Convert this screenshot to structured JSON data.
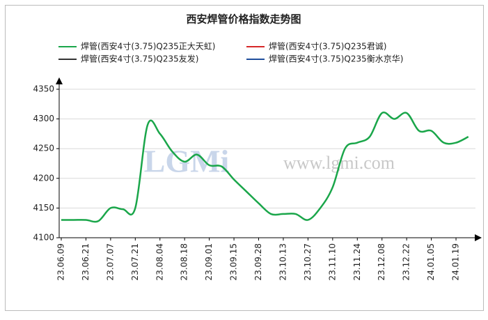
{
  "chart_data": {
    "type": "line",
    "title": "西安焊管价格指数走势图",
    "watermark": [
      "LGMi",
      "www.lgmi.com"
    ],
    "categories": [
      "23.06.09",
      null,
      "23.06.21",
      null,
      "23.07.07",
      null,
      "23.07.21",
      null,
      "23.08.04",
      null,
      "23.08.18",
      null,
      "23.09.01",
      null,
      "23.09.15",
      null,
      "23.09.28",
      null,
      "23.10.13",
      null,
      "23.10.27",
      null,
      "23.11.10",
      null,
      "23.11.24",
      null,
      "23.12.08",
      null,
      "23.12.22",
      null,
      "24.01.05",
      null,
      "24.01.19",
      null
    ],
    "series": [
      {
        "name": "焊管(西安4寸(3.75)Q235正大天虹)",
        "color": "#1aa64a",
        "values": [
          4130,
          4130,
          4130,
          4128,
          4150,
          4148,
          4150,
          4290,
          4275,
          4245,
          4228,
          4240,
          4222,
          4220,
          4198,
          4178,
          4158,
          4140,
          4140,
          4140,
          4130,
          4150,
          4185,
          4250,
          4260,
          4270,
          4310,
          4300,
          4310,
          4280,
          4280,
          4260,
          4260,
          4270
        ]
      },
      {
        "name": "焊管(西安4寸(3.75)Q235君诚)",
        "color": "#d62728",
        "values": [
          null,
          null,
          null,
          null,
          null,
          null,
          null,
          null,
          null,
          null,
          null,
          null,
          null,
          null,
          null,
          null,
          null,
          null,
          null,
          null,
          null,
          null,
          null,
          null,
          null,
          null,
          null,
          null,
          null,
          null,
          null,
          null,
          null,
          null
        ]
      },
      {
        "name": "焊管(西安4寸(3.75)Q235友发)",
        "color": "#333333",
        "values": [
          null,
          null,
          null,
          null,
          null,
          null,
          null,
          null,
          null,
          null,
          null,
          null,
          null,
          null,
          null,
          null,
          null,
          null,
          null,
          null,
          null,
          null,
          null,
          null,
          null,
          null,
          null,
          null,
          null,
          null,
          null,
          null,
          null,
          null
        ]
      },
      {
        "name": "焊管(西安4寸(3.75)Q235衡水京华)",
        "color": "#1f4e9c",
        "values": [
          null,
          null,
          null,
          null,
          null,
          null,
          null,
          null,
          null,
          null,
          null,
          null,
          null,
          null,
          null,
          null,
          null,
          null,
          null,
          null,
          null,
          null,
          null,
          null,
          null,
          null,
          null,
          null,
          null,
          null,
          null,
          null,
          null,
          null
        ]
      }
    ],
    "ylim": [
      4100,
      4350
    ],
    "yticks": [
      4100,
      4150,
      4200,
      4250,
      4300,
      4350
    ],
    "grid": true
  }
}
